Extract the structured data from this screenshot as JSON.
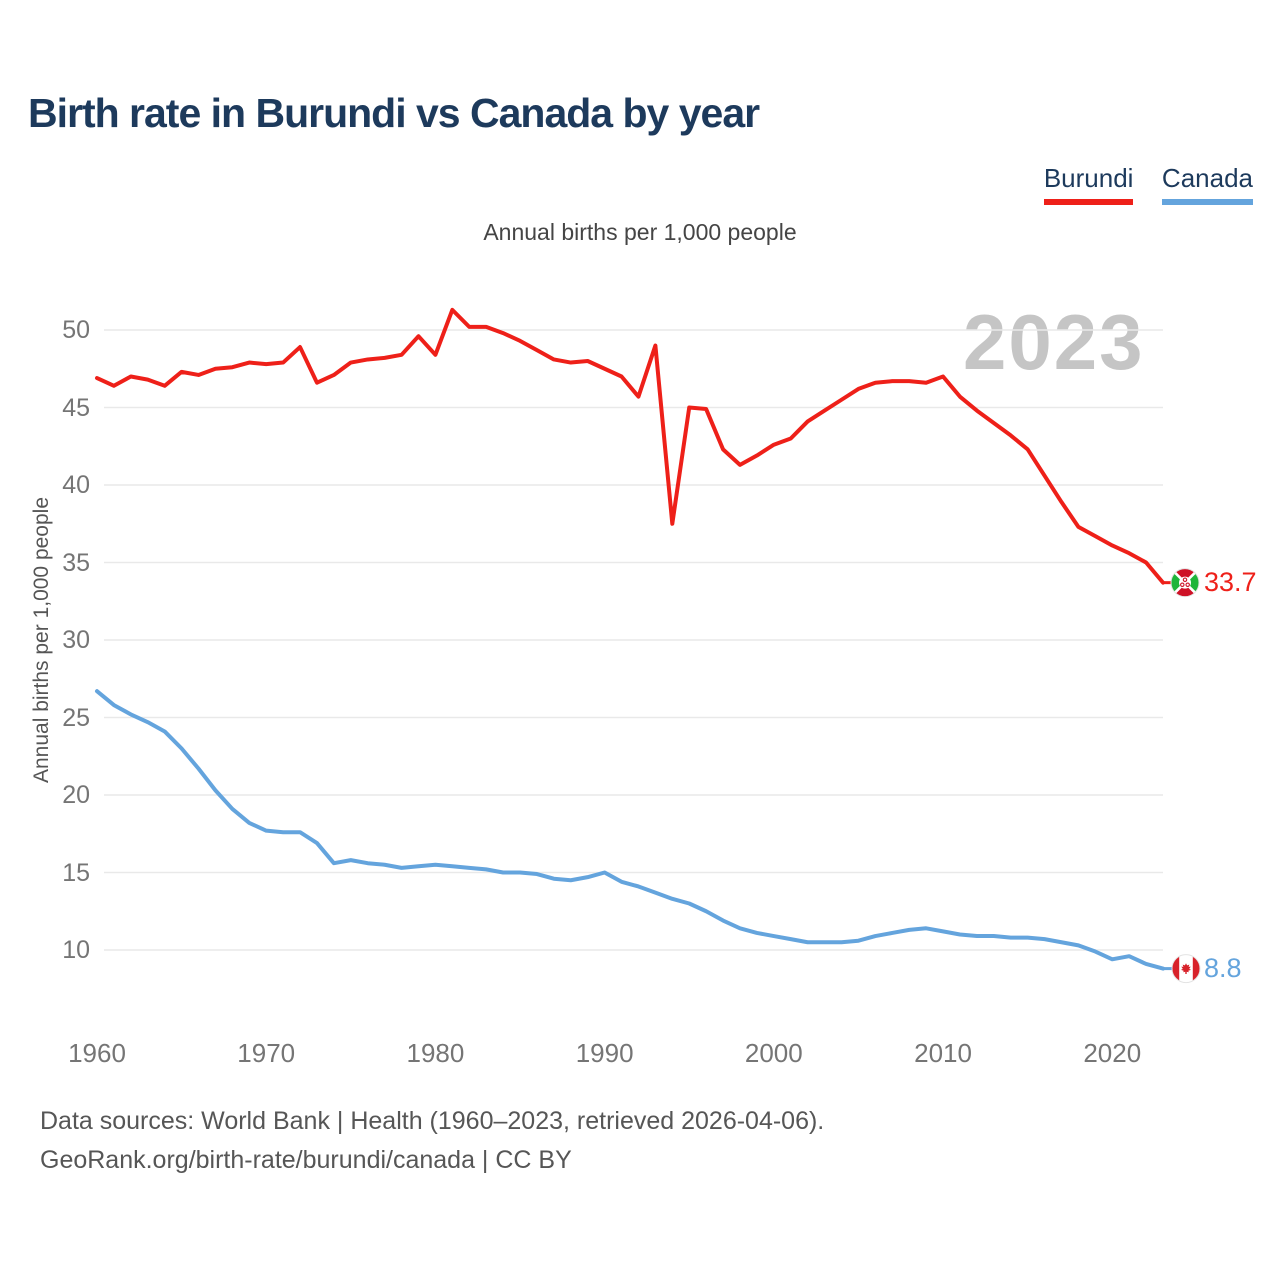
{
  "title": "Birth rate in Burundi vs Canada by year",
  "subtitle": "Annual births per 1,000 people",
  "watermark": "2023",
  "legend": {
    "items": [
      {
        "label": "Burundi",
        "color": "#ee2019"
      },
      {
        "label": "Canada",
        "color": "#64a4dd"
      }
    ]
  },
  "y_axis": {
    "title": "Annual births per 1,000 people",
    "ticks": [
      50,
      45,
      40,
      35,
      30,
      25,
      20,
      15,
      10
    ]
  },
  "x_axis": {
    "ticks": [
      1960,
      1970,
      1980,
      1990,
      2000,
      2010,
      2020
    ]
  },
  "end_labels": [
    {
      "series": "Burundi",
      "value": "33.7"
    },
    {
      "series": "Canada",
      "value": "8.8"
    }
  ],
  "footer": {
    "line1": "Data sources: World Bank | Health (1960–2023, retrieved 2026-04-06).",
    "line2": "GeoRank.org/birth-rate/burundi/canada | CC BY"
  },
  "chart_data": {
    "type": "line",
    "title": "Birth rate in Burundi vs Canada by year",
    "xlabel": "",
    "ylabel": "Annual births per 1,000 people",
    "xlim": [
      1960,
      2023
    ],
    "ylim": [
      8,
      52
    ],
    "grid": "horizontal",
    "legend_position": "top-right",
    "x": [
      1960,
      1961,
      1962,
      1963,
      1964,
      1965,
      1966,
      1967,
      1968,
      1969,
      1970,
      1971,
      1972,
      1973,
      1974,
      1975,
      1976,
      1977,
      1978,
      1979,
      1980,
      1981,
      1982,
      1983,
      1984,
      1985,
      1986,
      1987,
      1988,
      1989,
      1990,
      1991,
      1992,
      1993,
      1994,
      1995,
      1996,
      1997,
      1998,
      1999,
      2000,
      2001,
      2002,
      2003,
      2004,
      2005,
      2006,
      2007,
      2008,
      2009,
      2010,
      2011,
      2012,
      2013,
      2014,
      2015,
      2016,
      2017,
      2018,
      2019,
      2020,
      2021,
      2022,
      2023
    ],
    "series": [
      {
        "name": "Burundi",
        "color": "#ee2019",
        "values": [
          46.9,
          46.4,
          47.0,
          46.8,
          46.4,
          47.3,
          47.1,
          47.5,
          47.6,
          47.9,
          47.8,
          47.9,
          48.9,
          46.6,
          47.1,
          47.9,
          48.1,
          48.2,
          48.4,
          49.6,
          48.4,
          51.3,
          50.2,
          50.2,
          49.8,
          49.3,
          48.7,
          48.1,
          47.9,
          48.0,
          47.5,
          47.0,
          45.7,
          49.0,
          37.5,
          45.0,
          44.9,
          42.3,
          41.3,
          41.9,
          42.6,
          43.0,
          44.1,
          44.8,
          45.5,
          46.2,
          46.6,
          46.7,
          46.7,
          46.6,
          47.0,
          45.7,
          44.8,
          44.0,
          43.2,
          42.3,
          40.6,
          38.9,
          37.3,
          36.7,
          36.1,
          35.6,
          35.0,
          33.7
        ]
      },
      {
        "name": "Canada",
        "color": "#64a4dd",
        "values": [
          26.7,
          25.8,
          25.2,
          24.7,
          24.1,
          23.0,
          21.7,
          20.3,
          19.1,
          18.2,
          17.7,
          17.6,
          17.6,
          16.9,
          15.6,
          15.8,
          15.6,
          15.5,
          15.3,
          15.4,
          15.5,
          15.4,
          15.3,
          15.2,
          15.0,
          15.0,
          14.9,
          14.6,
          14.5,
          14.7,
          15.0,
          14.4,
          14.1,
          13.7,
          13.3,
          13.0,
          12.5,
          11.9,
          11.4,
          11.1,
          10.9,
          10.7,
          10.5,
          10.5,
          10.5,
          10.6,
          10.9,
          11.1,
          11.3,
          11.4,
          11.2,
          11.0,
          10.9,
          10.9,
          10.8,
          10.8,
          10.7,
          10.5,
          10.3,
          9.9,
          9.4,
          9.6,
          9.1,
          8.8
        ]
      }
    ],
    "end_markers": [
      {
        "series": "Burundi",
        "year": 2023,
        "value": 33.7,
        "marker": "burundi-flag"
      },
      {
        "series": "Canada",
        "year": 2023,
        "value": 8.8,
        "marker": "canada-flag"
      }
    ]
  }
}
